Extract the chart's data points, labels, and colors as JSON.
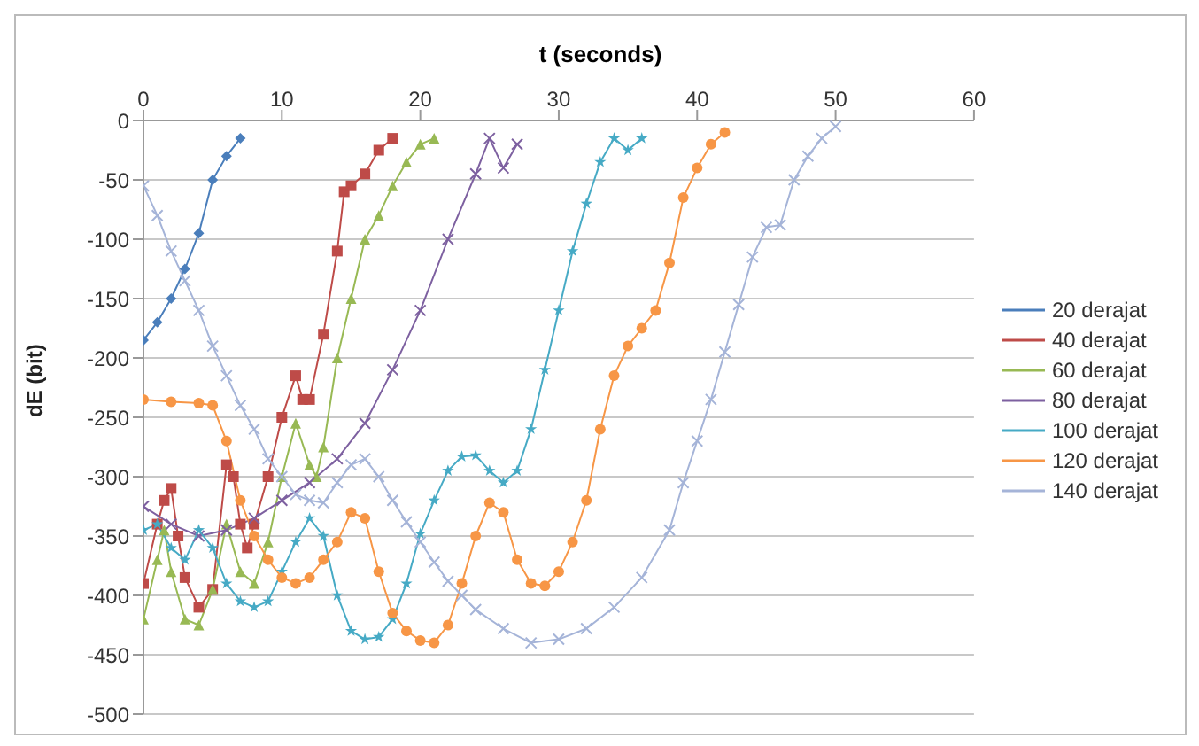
{
  "chart_data": {
    "type": "line",
    "title": "t (seconds)",
    "ylabel": "dE (bit)",
    "xlim": [
      0,
      60
    ],
    "xticks": [
      0,
      10,
      20,
      30,
      40,
      50,
      60
    ],
    "ylim": [
      -500,
      0
    ],
    "yticks": [
      -500,
      -450,
      -400,
      -350,
      -300,
      -250,
      -200,
      -150,
      -100,
      -50,
      0
    ],
    "grid": "y",
    "legend": "right",
    "line_style": "solid",
    "series": [
      {
        "name": "20 derajat",
        "color": "#4a7ebb",
        "marker": "diamond",
        "x": [
          0,
          1,
          2,
          3,
          4,
          5,
          6,
          7
        ],
        "values": [
          -185,
          -170,
          -150,
          -125,
          -95,
          -50,
          -30,
          -15
        ]
      },
      {
        "name": "40 derajat",
        "color": "#be4b48",
        "marker": "square",
        "x": [
          0,
          1,
          1.5,
          2,
          2.5,
          3,
          4,
          5,
          6,
          6.5,
          7,
          7.5,
          8,
          9,
          10,
          11,
          11.5,
          12,
          13,
          14,
          14.5,
          15,
          16,
          17,
          18
        ],
        "values": [
          -390,
          -340,
          -320,
          -310,
          -350,
          -385,
          -410,
          -395,
          -290,
          -300,
          -340,
          -360,
          -340,
          -300,
          -250,
          -215,
          -235,
          -235,
          -180,
          -110,
          -60,
          -55,
          -45,
          -25,
          -15
        ]
      },
      {
        "name": "60 derajat",
        "color": "#98b954",
        "marker": "triangle",
        "x": [
          0,
          1,
          1.5,
          2,
          3,
          4,
          5,
          6,
          7,
          8,
          9,
          10,
          11,
          12,
          12.5,
          13,
          14,
          15,
          16,
          17,
          18,
          19,
          20,
          21
        ],
        "values": [
          -420,
          -370,
          -345,
          -380,
          -420,
          -425,
          -395,
          -340,
          -380,
          -390,
          -355,
          -300,
          -255,
          -290,
          -300,
          -275,
          -200,
          -150,
          -100,
          -80,
          -55,
          -35,
          -20,
          -15
        ]
      },
      {
        "name": "80 derajat",
        "color": "#7d60a0",
        "marker": "cross",
        "x": [
          0,
          2,
          4,
          6,
          8,
          10,
          12,
          14,
          16,
          18,
          20,
          22,
          24,
          25,
          26,
          27
        ],
        "values": [
          -325,
          -340,
          -350,
          -345,
          -335,
          -320,
          -305,
          -285,
          -255,
          -210,
          -160,
          -100,
          -45,
          -15,
          -40,
          -20
        ]
      },
      {
        "name": "100 derajat",
        "color": "#46aac5",
        "marker": "star",
        "x": [
          0,
          1,
          2,
          3,
          4,
          5,
          6,
          7,
          8,
          9,
          10,
          11,
          12,
          13,
          14,
          15,
          16,
          17,
          18,
          19,
          20,
          21,
          22,
          23,
          24,
          25,
          26,
          27,
          28,
          29,
          30,
          31,
          32,
          33,
          34,
          35,
          36
        ],
        "values": [
          -345,
          -340,
          -360,
          -370,
          -345,
          -360,
          -390,
          -405,
          -410,
          -405,
          -380,
          -355,
          -335,
          -350,
          -400,
          -430,
          -437,
          -435,
          -420,
          -390,
          -348,
          -320,
          -295,
          -283,
          -282,
          -295,
          -305,
          -295,
          -260,
          -210,
          -160,
          -110,
          -70,
          -35,
          -15,
          -25,
          -15
        ]
      },
      {
        "name": "120 derajat",
        "color": "#f79646",
        "marker": "circle",
        "x": [
          0,
          2,
          4,
          5,
          6,
          7,
          8,
          9,
          10,
          11,
          12,
          13,
          14,
          15,
          16,
          17,
          18,
          19,
          20,
          21,
          22,
          23,
          24,
          25,
          26,
          27,
          28,
          29,
          30,
          31,
          32,
          33,
          34,
          35,
          36,
          37,
          38,
          39,
          40,
          41,
          42
        ],
        "values": [
          -235,
          -237,
          -238,
          -240,
          -270,
          -320,
          -350,
          -370,
          -385,
          -390,
          -385,
          -370,
          -355,
          -330,
          -335,
          -380,
          -415,
          -430,
          -438,
          -440,
          -425,
          -390,
          -350,
          -322,
          -330,
          -370,
          -390,
          -392,
          -380,
          -355,
          -320,
          -260,
          -215,
          -190,
          -175,
          -160,
          -120,
          -65,
          -40,
          -20,
          -10
        ]
      },
      {
        "name": "140 derajat",
        "color": "#a5b4d8",
        "marker": "cross",
        "x": [
          0,
          1,
          2,
          3,
          4,
          5,
          6,
          7,
          8,
          9,
          10,
          11,
          12,
          13,
          14,
          15,
          16,
          17,
          18,
          19,
          20,
          21,
          22,
          23,
          24,
          26,
          28,
          30,
          32,
          34,
          36,
          38,
          39,
          40,
          41,
          42,
          43,
          44,
          45,
          46,
          47,
          48,
          49,
          50
        ],
        "values": [
          -55,
          -80,
          -110,
          -135,
          -160,
          -190,
          -215,
          -240,
          -260,
          -285,
          -300,
          -315,
          -320,
          -322,
          -305,
          -290,
          -285,
          -300,
          -320,
          -338,
          -355,
          -372,
          -388,
          -400,
          -412,
          -428,
          -440,
          -437,
          -428,
          -410,
          -385,
          -345,
          -305,
          -270,
          -235,
          -195,
          -155,
          -115,
          -90,
          -88,
          -50,
          -30,
          -15,
          -5
        ]
      }
    ]
  }
}
